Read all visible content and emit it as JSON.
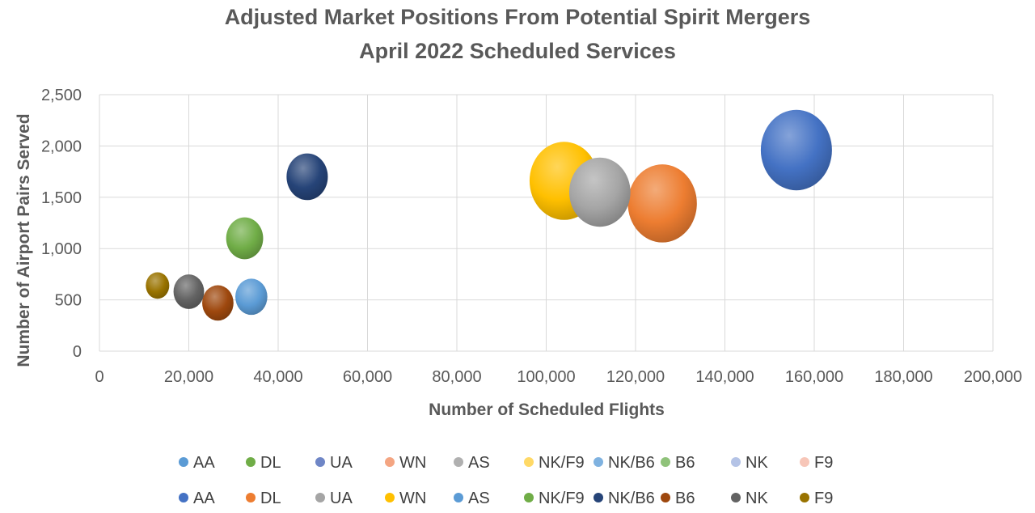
{
  "chart_data": {
    "type": "bubble",
    "title": "Adjusted Market Positions From Potential Spirit Mergers",
    "subtitle": "April 2022 Scheduled Services",
    "xlabel": "Number of Scheduled Flights",
    "ylabel": "Number of Airport Pairs Served",
    "xlim": [
      0,
      200000
    ],
    "ylim": [
      0,
      2500
    ],
    "x_ticks": [
      0,
      20000,
      40000,
      60000,
      80000,
      100000,
      120000,
      140000,
      160000,
      180000,
      200000
    ],
    "x_tick_labels": [
      "0",
      "20,000",
      "40,000",
      "60,000",
      "80,000",
      "100,000",
      "120,000",
      "140,000",
      "160,000",
      "180,000",
      "200,000"
    ],
    "y_ticks": [
      0,
      500,
      1000,
      1500,
      2000,
      2500
    ],
    "y_tick_labels": [
      "0",
      "500",
      "1,000",
      "1,500",
      "2,000",
      "2,500"
    ],
    "grid": true,
    "legend_position": "bottom",
    "legend_rows": [
      [
        {
          "name": "AA",
          "color": "#5b9bd5"
        },
        {
          "name": "DL",
          "color": "#70ad47"
        },
        {
          "name": "UA",
          "color": "#6f86c6"
        },
        {
          "name": "WN",
          "color": "#f4a582"
        },
        {
          "name": "AS",
          "color": "#b0b0b0"
        },
        {
          "name": "NK/F9",
          "color": "#ffd966"
        },
        {
          "name": "NK/B6",
          "color": "#7fb2e0"
        },
        {
          "name": "B6",
          "color": "#8fc27a"
        },
        {
          "name": "NK",
          "color": "#b4c3e6"
        },
        {
          "name": "F9",
          "color": "#f7c6b8"
        }
      ],
      [
        {
          "name": "AA",
          "color": "#4472c4"
        },
        {
          "name": "DL",
          "color": "#ed7d31"
        },
        {
          "name": "UA",
          "color": "#a5a5a5"
        },
        {
          "name": "WN",
          "color": "#ffc000"
        },
        {
          "name": "AS",
          "color": "#5b9bd5"
        },
        {
          "name": "NK/F9",
          "color": "#70ad47"
        },
        {
          "name": "NK/B6",
          "color": "#264478"
        },
        {
          "name": "B6",
          "color": "#9e480e"
        },
        {
          "name": "NK",
          "color": "#636363"
        },
        {
          "name": "F9",
          "color": "#997300"
        }
      ]
    ],
    "series": [
      {
        "name": "AA",
        "x": 156000,
        "y": 1960,
        "size": 1.0,
        "color": "#4472c4"
      },
      {
        "name": "DL",
        "x": 126000,
        "y": 1440,
        "size": 0.97,
        "color": "#ed7d31"
      },
      {
        "name": "UA",
        "x": 112000,
        "y": 1550,
        "size": 0.86,
        "color": "#a5a5a5"
      },
      {
        "name": "WN",
        "x": 104000,
        "y": 1660,
        "size": 0.97,
        "color": "#ffc000"
      },
      {
        "name": "AS",
        "x": 34000,
        "y": 530,
        "size": 0.45,
        "color": "#5b9bd5"
      },
      {
        "name": "NK/F9",
        "x": 32500,
        "y": 1100,
        "size": 0.52,
        "color": "#70ad47"
      },
      {
        "name": "NK/B6",
        "x": 46500,
        "y": 1700,
        "size": 0.58,
        "color": "#264478"
      },
      {
        "name": "B6",
        "x": 26500,
        "y": 470,
        "size": 0.44,
        "color": "#9e480e"
      },
      {
        "name": "NK",
        "x": 20000,
        "y": 580,
        "size": 0.43,
        "color": "#636363"
      },
      {
        "name": "F9",
        "x": 13000,
        "y": 640,
        "size": 0.33,
        "color": "#997300"
      }
    ]
  }
}
